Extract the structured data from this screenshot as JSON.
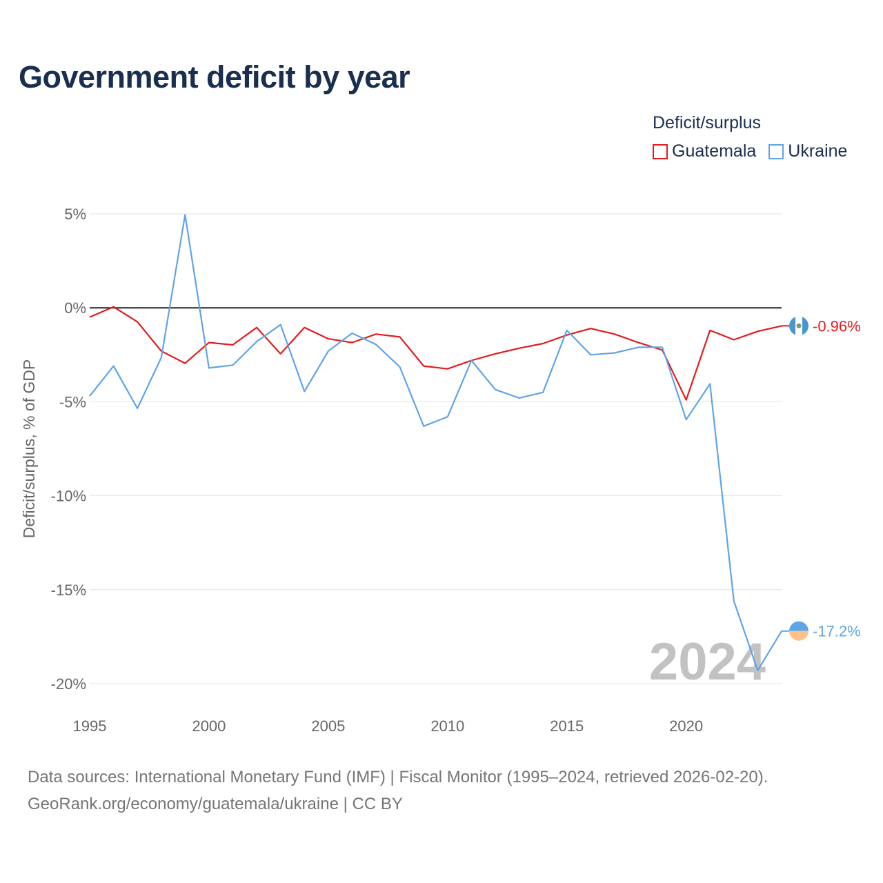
{
  "title": "Government deficit by year",
  "legend": {
    "title": "Deficit/surplus",
    "items": [
      {
        "name": "Guatemala",
        "color": "#e31a1c"
      },
      {
        "name": "Ukraine",
        "color": "#5fa4e6"
      }
    ]
  },
  "chart_data": {
    "type": "line",
    "title": "Government deficit by year",
    "xlabel": "",
    "ylabel": "Deficit/surplus, % of GDP",
    "xlim": [
      1995,
      2024
    ],
    "ylim": [
      -20,
      5
    ],
    "x_ticks": [
      1995,
      2000,
      2005,
      2010,
      2015,
      2020
    ],
    "y_ticks": [
      5,
      0,
      -5,
      -10,
      -15,
      -20
    ],
    "y_tick_labels": [
      "5%",
      "0%",
      "-5%",
      "-10%",
      "-15%",
      "-20%"
    ],
    "x": [
      1995,
      1996,
      1997,
      1998,
      1999,
      2000,
      2001,
      2002,
      2003,
      2004,
      2005,
      2006,
      2007,
      2008,
      2009,
      2010,
      2011,
      2012,
      2013,
      2014,
      2015,
      2016,
      2017,
      2018,
      2019,
      2020,
      2021,
      2022,
      2023,
      2024
    ],
    "series": [
      {
        "name": "Guatemala",
        "color": "#e31a1c",
        "values": [
          -0.5,
          0.05,
          -0.75,
          -2.3,
          -2.95,
          -1.85,
          -1.97,
          -1.05,
          -2.45,
          -1.05,
          -1.65,
          -1.85,
          -1.4,
          -1.55,
          -3.1,
          -3.25,
          -2.8,
          -2.45,
          -2.15,
          -1.9,
          -1.45,
          -1.1,
          -1.4,
          -1.85,
          -2.25,
          -4.9,
          -1.2,
          -1.7,
          -1.25,
          -0.96
        ],
        "end_label": "-0.96%"
      },
      {
        "name": "Ukraine",
        "color": "#5fa4e6",
        "values": [
          -4.7,
          -3.1,
          -5.35,
          -2.65,
          4.95,
          -3.2,
          -3.05,
          -1.8,
          -0.9,
          -4.45,
          -2.3,
          -1.35,
          -1.95,
          -3.15,
          -6.3,
          -5.8,
          -2.8,
          -4.35,
          -4.8,
          -4.5,
          -1.2,
          -2.5,
          -2.4,
          -2.1,
          -2.1,
          -5.95,
          -4.05,
          -15.6,
          -19.3,
          -17.2
        ],
        "end_label": "-17.2%"
      }
    ],
    "current_year_label": "2024"
  },
  "footer": {
    "line1": "Data sources: International Monetary Fund (IMF) | Fiscal Monitor (1995–2024, retrieved 2026-02-20).",
    "line2": "GeoRank.org/economy/guatemala/ukraine | CC BY"
  }
}
